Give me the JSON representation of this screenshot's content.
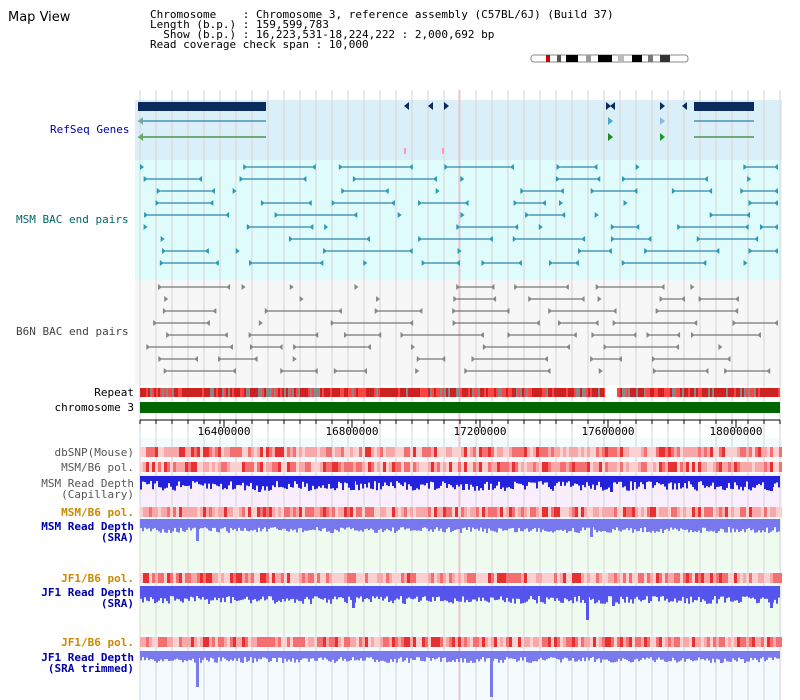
{
  "header": {
    "title": "Map View"
  },
  "info": {
    "chromosome_label": "Chromosome",
    "chromosome_value": "Chromosome 3, reference assembly (C57BL/6J) (Build 37)",
    "length_label": "Length (b.p.)",
    "length_value": "159,599,783",
    "show_label": "Show (b.p.)",
    "show_value": "16,223,531-18,224,222 : 2,000,692 bp",
    "span_label": "Read coverage check span",
    "span_value": "10,000"
  },
  "tracks": {
    "refseq": "RefSeq Genes",
    "msm_bac": "MSM BAC end pairs",
    "b6n_bac": "B6N BAC end pairs",
    "repeat": "Repeat",
    "chromosome": "chromosome 3",
    "dbsnp": "dbSNP(Mouse)",
    "msm_b6_pol_1": "MSM/B6 pol.",
    "msm_depth_cap_1": "MSM Read Depth",
    "msm_depth_cap_2": "(Capillary)",
    "msm_b6_pol_2": "MSM/B6 pol.",
    "msm_depth_sra_1": "MSM Read Depth",
    "msm_depth_sra_2": "(SRA)",
    "jf1_b6_pol_1": "JF1/B6 pol.",
    "jf1_depth_sra_1": "JF1 Read Depth",
    "jf1_depth_sra_2": "(SRA)",
    "jf1_b6_pol_2": "JF1/B6 pol.",
    "jf1_depth_trim_1": "JF1 Read Depth",
    "jf1_depth_trim_2": "(SRA trimmed)"
  },
  "axis": {
    "ticks": [
      "16400000",
      "16800000",
      "17200000",
      "17600000",
      "18000000"
    ]
  },
  "colors": {
    "refseq_bg": "#dbeff8",
    "msm_bg": "#e0fbfb",
    "b6n_bg": "#f7f7f7",
    "chrom_green": "#006600",
    "msm_teal": "#006699",
    "gene_navy": "#0b2a5e",
    "depth_blue": "#3333ee",
    "label_blue": "#0000aa",
    "label_orange": "#cc8800",
    "label_teal": "#006666"
  }
}
